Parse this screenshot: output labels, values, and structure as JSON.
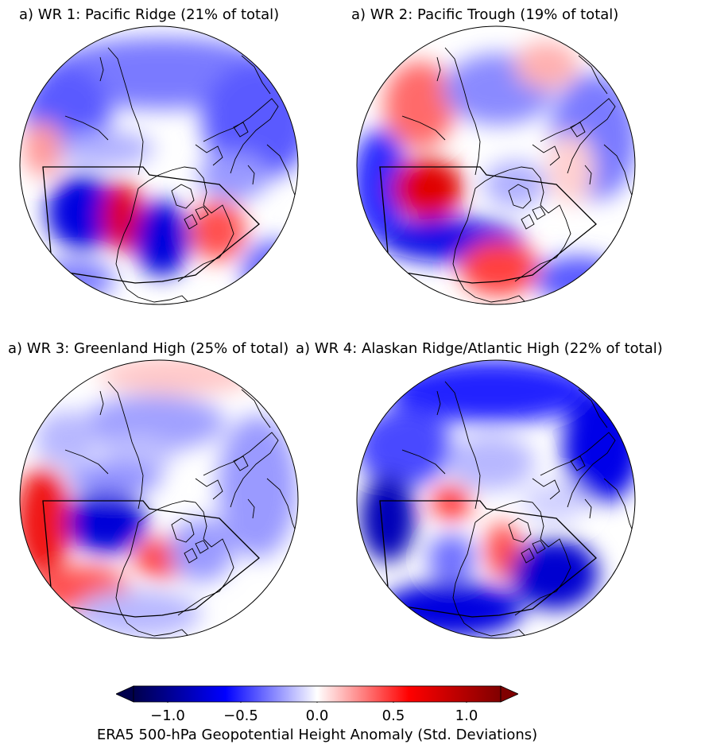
{
  "panels": [
    {
      "title": "a) WR 1: Pacific Ridge (21% of total)"
    },
    {
      "title": "a) WR 2: Pacific Trough (19% of total)"
    },
    {
      "title": "a) WR 3: Greenland High (25% of total)"
    },
    {
      "title": "a) WR 4: Alaskan Ridge/Atlantic High (22% of total)"
    }
  ],
  "colorbar": {
    "label": "ERA5 500-hPa Geopotential Height Anomaly (Std. Deviations)",
    "ticks": [
      "−1.0",
      "−0.5",
      "0.0",
      "0.5",
      "1.0"
    ],
    "range": [
      -1.2,
      1.2
    ],
    "colormap": "seismic",
    "extend": "both",
    "colors": {
      "min": "#00004c",
      "neg": "#0000ff",
      "zero": "#ffffff",
      "pos": "#ff0000",
      "max": "#800000"
    }
  }
}
